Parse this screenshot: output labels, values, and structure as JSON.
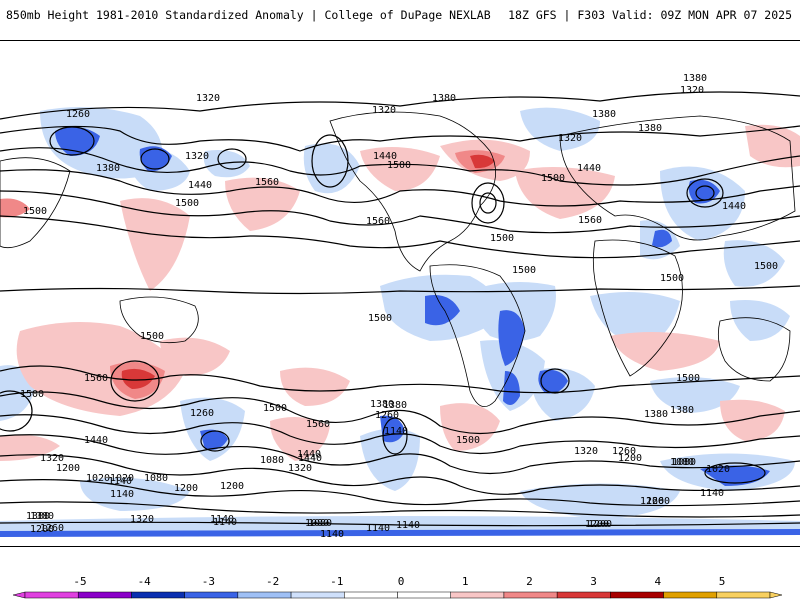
{
  "header": {
    "title": "850mb Height 1981-2010 Standardized Anomaly | College of DuPage NEXLAB",
    "run_info": "18Z GFS | F303 Valid: 09Z MON APR 07 2025"
  },
  "contour_labels": [
    "1320",
    "1380",
    "1380",
    "1320",
    "1260",
    "1320",
    "1380",
    "1440",
    "1500",
    "1560",
    "1500",
    "1440",
    "1380",
    "1320",
    "1500",
    "1560",
    "1440",
    "1500",
    "1500",
    "1500",
    "1500",
    "1500",
    "1500",
    "1500",
    "1560",
    "1440",
    "1380",
    "1320",
    "1260",
    "1200",
    "1140",
    "1080",
    "1020",
    "1080",
    "1140",
    "1200",
    "1260",
    "1320",
    "1380",
    "1440",
    "1500",
    "1560",
    "1440",
    "1380",
    "1260",
    "1140",
    "1080",
    "1020",
    "1140",
    "1200",
    "1080",
    "1020",
    "1140",
    "1260",
    "1380",
    "1500",
    "1500",
    "1560",
    "1500",
    "1440",
    "1380",
    "1320",
    "1260",
    "1200",
    "1140",
    "1080",
    "1200",
    "1260",
    "1140",
    "1200",
    "1080",
    "1140",
    "1320",
    "1380",
    "1380",
    "1320",
    "1260",
    "1200",
    "1140"
  ],
  "colorbar": {
    "ticks": [
      "-5",
      "-4",
      "-3",
      "-2",
      "-1",
      "0",
      "1",
      "2",
      "3",
      "4",
      "5"
    ],
    "colors": [
      "#e040e0",
      "#8a00c8",
      "#0a2fb0",
      "#3a63e6",
      "#9fc0f5",
      "#cfe0fb",
      "#ffffff",
      "#ffffff",
      "#f8c6c6",
      "#f08888",
      "#d83838",
      "#a80000",
      "#e0a000",
      "#f8d060"
    ]
  }
}
